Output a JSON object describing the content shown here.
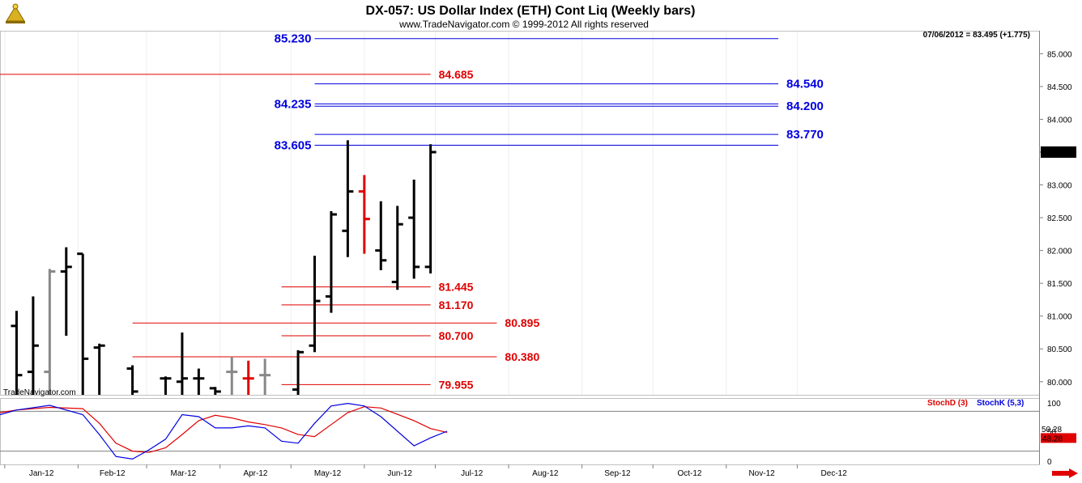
{
  "header": {
    "title": "DX-057:  US Dollar Index (ETH) Cont Liq  (Weekly bars)",
    "subtitle": "www.TradeNavigator.com © 1999-2012 All rights reserved",
    "last_info": "07/06/2012 = 83.495 (+1.775)",
    "watermark": "TradeNavigator.com"
  },
  "colors": {
    "bull": "#000000",
    "bear": "#e00000",
    "flat": "#888888",
    "blue_level": "#0000e0",
    "red_level": "#e00000",
    "stoch_d": "#e00000",
    "stoch_k": "#0000e0"
  },
  "chart_data": [
    {
      "type": "ohlc",
      "title": "DX-057:  US Dollar Index (ETH) Cont Liq  (Weekly bars)",
      "ylim": [
        79.8,
        85.35
      ],
      "y_ticks": [
        "85.000",
        "84.500",
        "84.000",
        "83.500",
        "83.000",
        "82.500",
        "82.000",
        "81.500",
        "81.000",
        "80.500",
        "80.000"
      ],
      "x_labels": [
        "Jan-12",
        "Feb-12",
        "Mar-12",
        "Apr-12",
        "May-12",
        "Jun-12",
        "Jul-12",
        "Aug-12",
        "Sep-12",
        "Oct-12",
        "Nov-12",
        "Dec-12"
      ],
      "current_value_label": "83.495",
      "bars": [
        {
          "date": "2012-01-06",
          "o": 80.85,
          "h": 81.08,
          "l": 79.8,
          "c": 80.1,
          "color": "bull"
        },
        {
          "date": "2012-01-13",
          "o": 80.15,
          "h": 81.3,
          "l": 79.8,
          "c": 80.55,
          "color": "bull"
        },
        {
          "date": "2012-01-20",
          "o": 80.15,
          "h": 81.72,
          "l": 79.8,
          "c": 81.68,
          "color": "flat"
        },
        {
          "date": "2012-01-27",
          "o": 81.68,
          "h": 82.05,
          "l": 80.7,
          "c": 81.75,
          "color": "bull"
        },
        {
          "date": "2012-02-03",
          "o": 81.95,
          "h": 81.95,
          "l": 79.8,
          "c": 80.35,
          "color": "bull"
        },
        {
          "date": "2012-02-10",
          "o": 80.52,
          "h": 80.58,
          "l": 79.8,
          "c": 80.55,
          "color": "bull"
        },
        {
          "date": "2012-02-24",
          "o": 80.2,
          "h": 80.25,
          "l": 79.8,
          "c": 79.85,
          "color": "bull"
        },
        {
          "date": "2012-03-09",
          "o": 80.05,
          "h": 80.08,
          "l": 79.8,
          "c": 80.05,
          "color": "bull"
        },
        {
          "date": "2012-03-16",
          "o": 80.0,
          "h": 80.75,
          "l": 79.8,
          "c": 80.05,
          "color": "bull"
        },
        {
          "date": "2012-03-23",
          "o": 80.05,
          "h": 80.2,
          "l": 79.8,
          "c": 80.05,
          "color": "bull"
        },
        {
          "date": "2012-03-30",
          "o": 79.9,
          "h": 79.92,
          "l": 79.8,
          "c": 79.85,
          "color": "bull"
        },
        {
          "date": "2012-04-06",
          "o": 80.15,
          "h": 80.38,
          "l": 79.8,
          "c": 80.15,
          "color": "flat"
        },
        {
          "date": "2012-04-13",
          "o": 80.05,
          "h": 80.32,
          "l": 79.8,
          "c": 80.05,
          "color": "bear"
        },
        {
          "date": "2012-04-20",
          "o": 80.1,
          "h": 80.35,
          "l": 79.8,
          "c": 80.1,
          "color": "flat"
        },
        {
          "date": "2012-05-04",
          "o": 79.88,
          "h": 80.48,
          "l": 79.8,
          "c": 80.45,
          "color": "bull"
        },
        {
          "date": "2012-05-11",
          "o": 80.55,
          "h": 81.92,
          "l": 80.45,
          "c": 81.23,
          "color": "bull"
        },
        {
          "date": "2012-05-18",
          "o": 81.3,
          "h": 82.6,
          "l": 81.05,
          "c": 82.55,
          "color": "bull"
        },
        {
          "date": "2012-05-25",
          "o": 82.3,
          "h": 83.68,
          "l": 81.9,
          "c": 82.9,
          "color": "bull"
        },
        {
          "date": "2012-06-01",
          "o": 82.9,
          "h": 83.15,
          "l": 81.95,
          "c": 82.48,
          "color": "bear"
        },
        {
          "date": "2012-06-08",
          "o": 82.0,
          "h": 82.75,
          "l": 81.7,
          "c": 81.85,
          "color": "bull"
        },
        {
          "date": "2012-06-15",
          "o": 81.52,
          "h": 82.68,
          "l": 81.4,
          "c": 82.4,
          "color": "bull"
        },
        {
          "date": "2012-06-22",
          "o": 82.5,
          "h": 83.08,
          "l": 81.57,
          "c": 81.75,
          "color": "bull"
        },
        {
          "date": "2012-06-29",
          "o": 81.75,
          "h": 83.62,
          "l": 81.65,
          "c": 83.5,
          "color": "bull"
        }
      ],
      "levels": [
        {
          "value": 85.23,
          "label": "85.230",
          "color": "blue",
          "x_from": "2012-05-11",
          "x_to": "2012-11-23",
          "label_side": "left"
        },
        {
          "value": 84.685,
          "label": "84.685",
          "color": "red",
          "x_from": "2011-12-30",
          "x_to": "2012-06-29",
          "label_side": "right"
        },
        {
          "value": 84.54,
          "label": "84.540",
          "color": "blue",
          "x_from": "2012-05-11",
          "x_to": "2012-11-23",
          "label_side": "right"
        },
        {
          "value": 84.235,
          "label": "84.235",
          "color": "blue",
          "x_from": "2012-05-11",
          "x_to": "2012-11-23",
          "label_side": "left"
        },
        {
          "value": 84.2,
          "label": "84.200",
          "color": "blue",
          "x_from": "2012-05-11",
          "x_to": "2012-11-23",
          "label_side": "right"
        },
        {
          "value": 83.77,
          "label": "83.770",
          "color": "blue",
          "x_from": "2012-05-11",
          "x_to": "2012-11-23",
          "label_side": "right"
        },
        {
          "value": 83.605,
          "label": "83.605",
          "color": "blue",
          "x_from": "2012-05-11",
          "x_to": "2012-11-23",
          "label_side": "left"
        },
        {
          "value": 81.445,
          "label": "81.445",
          "color": "red",
          "x_from": "2012-04-27",
          "x_to": "2012-06-29",
          "label_side": "right"
        },
        {
          "value": 81.17,
          "label": "81.170",
          "color": "red",
          "x_from": "2012-04-27",
          "x_to": "2012-06-29",
          "label_side": "right"
        },
        {
          "value": 80.895,
          "label": "80.895",
          "color": "red",
          "x_from": "2012-02-24",
          "x_to": "2012-07-27",
          "label_side": "right"
        },
        {
          "value": 80.7,
          "label": "80.700",
          "color": "red",
          "x_from": "2012-04-27",
          "x_to": "2012-06-29",
          "label_side": "right"
        },
        {
          "value": 80.38,
          "label": "80.380",
          "color": "red",
          "x_from": "2012-02-24",
          "x_to": "2012-07-27",
          "label_side": "right"
        },
        {
          "value": 79.955,
          "label": "79.955",
          "color": "red",
          "x_from": "2012-04-27",
          "x_to": "2012-06-29",
          "label_side": "right"
        }
      ]
    },
    {
      "type": "line",
      "ylim": [
        0,
        100
      ],
      "y_ticks": [
        "100",
        "50",
        "0"
      ],
      "hlines": [
        80,
        20
      ],
      "legend": [
        "StochD (3)",
        "StochK (5,3)"
      ],
      "value_labels": {
        "d": "48.28",
        "k": "50.28"
      },
      "series": [
        {
          "name": "StochD (3)",
          "key": "d",
          "points": [
            [
              "2011-12-30",
              78
            ],
            [
              "2012-01-06",
              82
            ],
            [
              "2012-01-20",
              86
            ],
            [
              "2012-02-03",
              84
            ],
            [
              "2012-02-10",
              62
            ],
            [
              "2012-02-17",
              32
            ],
            [
              "2012-02-24",
              20
            ],
            [
              "2012-03-02",
              18
            ],
            [
              "2012-03-09",
              25
            ],
            [
              "2012-03-16",
              45
            ],
            [
              "2012-03-23",
              66
            ],
            [
              "2012-03-30",
              74
            ],
            [
              "2012-04-06",
              70
            ],
            [
              "2012-04-13",
              64
            ],
            [
              "2012-04-20",
              60
            ],
            [
              "2012-04-27",
              55
            ],
            [
              "2012-05-04",
              45
            ],
            [
              "2012-05-11",
              42
            ],
            [
              "2012-05-18",
              60
            ],
            [
              "2012-05-25",
              78
            ],
            [
              "2012-06-01",
              87
            ],
            [
              "2012-06-08",
              85
            ],
            [
              "2012-06-22",
              66
            ],
            [
              "2012-06-29",
              54
            ],
            [
              "2012-07-06",
              48
            ]
          ]
        },
        {
          "name": "StochK (5,3)",
          "key": "k",
          "points": [
            [
              "2011-12-30",
              75
            ],
            [
              "2012-01-06",
              82
            ],
            [
              "2012-01-20",
              89
            ],
            [
              "2012-02-03",
              75
            ],
            [
              "2012-02-10",
              45
            ],
            [
              "2012-02-17",
              12
            ],
            [
              "2012-02-24",
              8
            ],
            [
              "2012-03-02",
              22
            ],
            [
              "2012-03-09",
              38
            ],
            [
              "2012-03-16",
              75
            ],
            [
              "2012-03-23",
              72
            ],
            [
              "2012-03-30",
              55
            ],
            [
              "2012-04-06",
              55
            ],
            [
              "2012-04-13",
              58
            ],
            [
              "2012-04-20",
              55
            ],
            [
              "2012-04-27",
              35
            ],
            [
              "2012-05-04",
              32
            ],
            [
              "2012-05-11",
              62
            ],
            [
              "2012-05-18",
              88
            ],
            [
              "2012-05-25",
              92
            ],
            [
              "2012-06-01",
              88
            ],
            [
              "2012-06-08",
              72
            ],
            [
              "2012-06-22",
              28
            ],
            [
              "2012-06-29",
              40
            ],
            [
              "2012-07-06",
              50
            ]
          ]
        }
      ]
    }
  ],
  "nav": {
    "right_arrow": "arrow-right-icon"
  }
}
